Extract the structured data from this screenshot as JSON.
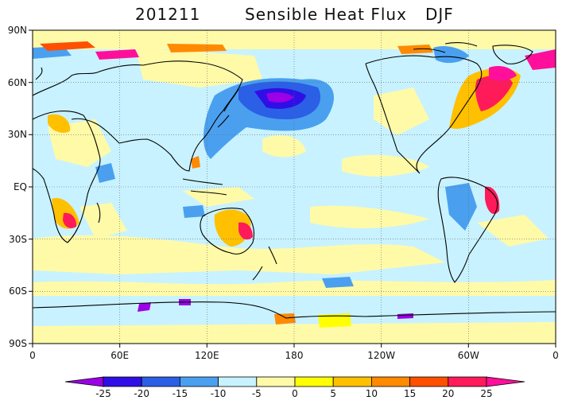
{
  "title": {
    "date": "201211",
    "variable": "Sensible Heat Flux",
    "season": "DJF"
  },
  "lat_ticks": [
    "90N",
    "60N",
    "30N",
    "EQ",
    "30S",
    "60S",
    "90S"
  ],
  "lon_ticks": [
    "0",
    "60E",
    "120E",
    "180",
    "120W",
    "60W",
    "0"
  ],
  "colorbar": {
    "labels": [
      "-25",
      "-20",
      "-15",
      "-10",
      "-5",
      "0",
      "5",
      "10",
      "15",
      "20",
      "25"
    ],
    "colors": [
      "#9b00e6",
      "#2f0fe6",
      "#2a5fe6",
      "#4aa0ef",
      "#c8f2ff",
      "#fffaa8",
      "#ffff00",
      "#ffc000",
      "#ff8a00",
      "#ff5000",
      "#ff1a5a",
      "#ff0f9a"
    ],
    "low_arrow_color": "#9b00e6",
    "high_arrow_color": "#ff0f9a"
  },
  "colors": {
    "ocean_background": "#c8f2ff",
    "coast": "#000000"
  }
}
